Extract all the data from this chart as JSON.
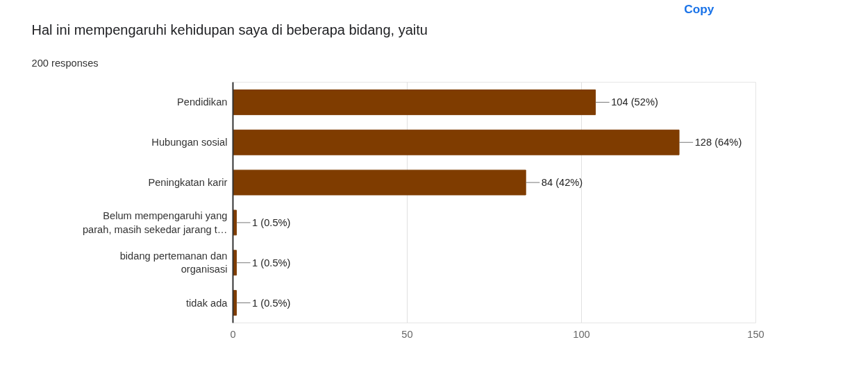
{
  "chart_data": {
    "type": "bar",
    "orientation": "horizontal",
    "title": "Hal ini mempengaruhi kehidupan saya di beberapa bidang, yaitu",
    "subtitle": "200 responses",
    "categories": [
      "Pendidikan",
      "Hubungan sosial",
      "Peningkatan karir",
      "Belum mempengaruhi yang\nparah, masih sekedar jarang t…",
      "bidang pertemanan dan\norganisasi",
      "tidak ada"
    ],
    "values": [
      104,
      128,
      84,
      1,
      1,
      1
    ],
    "value_labels": [
      "104 (52%)",
      "128 (64%)",
      "84 (42%)",
      "1 (0.5%)",
      "1 (0.5%)",
      "1 (0.5%)"
    ],
    "color": "#7f3c00",
    "xlim": [
      0,
      150
    ],
    "xticks": [
      0,
      50,
      100,
      150
    ],
    "grid": "x",
    "annotations": [
      "Copy"
    ]
  }
}
